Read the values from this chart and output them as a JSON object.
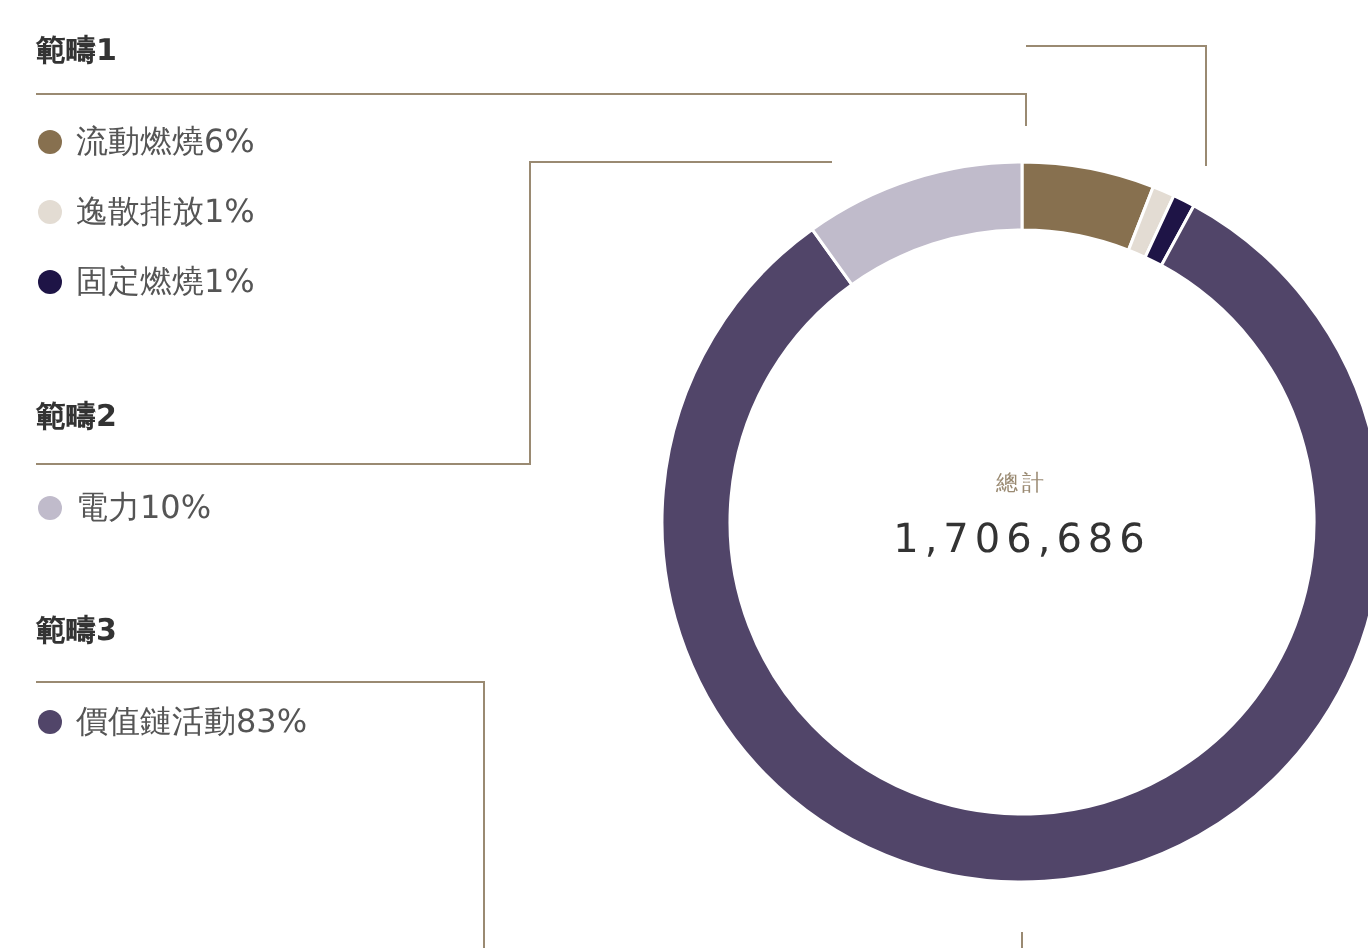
{
  "chart_data": {
    "type": "donut",
    "categories": [
      "流動燃燒",
      "逸散排放",
      "固定燃燒",
      "價值鏈活動",
      "電力"
    ],
    "values": [
      6,
      1,
      1,
      83,
      10
    ],
    "value_labels": [
      "6%",
      "1%",
      "1%",
      "83%",
      "10%"
    ],
    "colors": [
      "#87704f",
      "#e3dcd3",
      "#1e1446",
      "#514569",
      "#c0bbcb"
    ],
    "legend": "left",
    "annotations": [
      "範疇1",
      "範疇2",
      "範疇3",
      "總計",
      "1,706,686"
    ]
  }
}
